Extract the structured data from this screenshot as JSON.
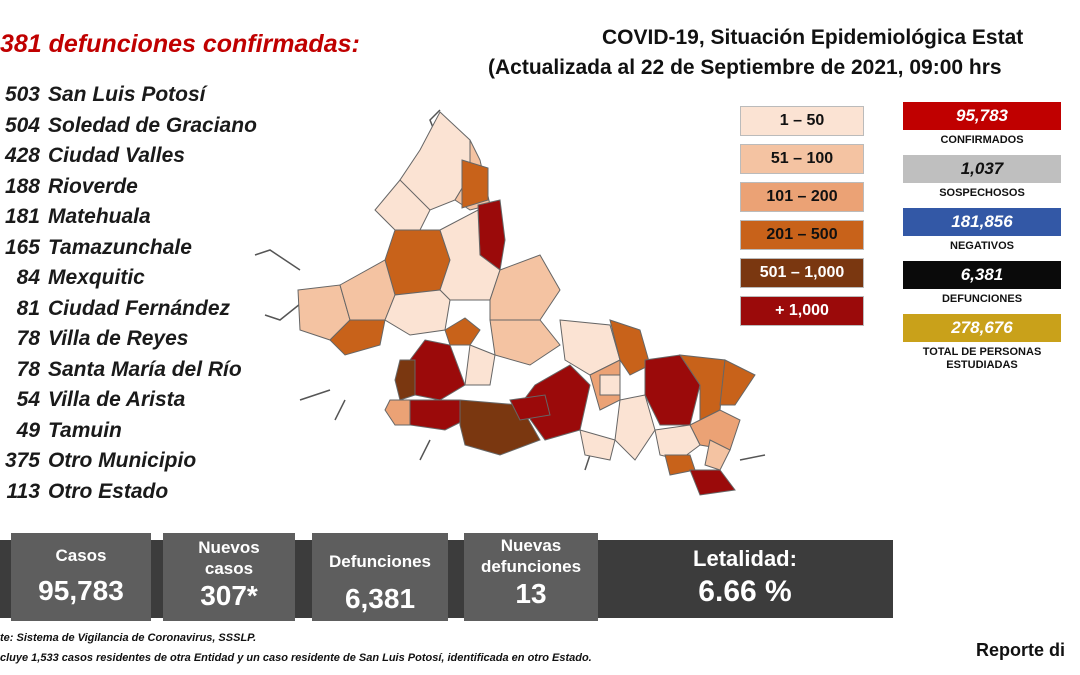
{
  "deaths_panel": {
    "title": "381 defunciones confirmadas:",
    "items": [
      {
        "count": "503",
        "name": "San Luis Potosí"
      },
      {
        "count": "504",
        "name": "Soledad de Graciano"
      },
      {
        "count": "428",
        "name": "Ciudad Valles"
      },
      {
        "count": "188",
        "name": "Rioverde"
      },
      {
        "count": "181",
        "name": "Matehuala"
      },
      {
        "count": "165",
        "name": "Tamazunchale"
      },
      {
        "count": "84",
        "name": "Mexquitic"
      },
      {
        "count": "81",
        "name": "Ciudad Fernández"
      },
      {
        "count": "78",
        "name": "Villa de Reyes"
      },
      {
        "count": "78",
        "name": "Santa María del Río"
      },
      {
        "count": "54",
        "name": "Villa de Arista"
      },
      {
        "count": "49",
        "name": "Tamuin"
      },
      {
        "count": "375",
        "name": "Otro Municipio"
      },
      {
        "count": "113",
        "name": "Otro Estado"
      }
    ]
  },
  "header": {
    "title": "COVID-19, Situación Epidemiológica Estat",
    "subtitle": "(Actualizada al 22 de Septiembre de 2021, 09:00 hrs"
  },
  "legend": [
    {
      "label": "1 – 50",
      "color": "#fbe3d3",
      "text_color": "#111111"
    },
    {
      "label": "51 – 100",
      "color": "#f4c3a2",
      "text_color": "#111111"
    },
    {
      "label": "101 – 200",
      "color": "#eba275",
      "text_color": "#111111"
    },
    {
      "label": "201 – 500",
      "color": "#c8621a",
      "text_color": "#111111"
    },
    {
      "label": "501 – 1,000",
      "color": "#7a3710",
      "text_color": "#ffffff"
    },
    {
      "label": "+ 1,000",
      "color": "#9b0a0a",
      "text_color": "#ffffff"
    }
  ],
  "stats": [
    {
      "value": "95,783",
      "label": "CONFIRMADOS",
      "color": "#c00000",
      "text_color": "#ffffff"
    },
    {
      "value": "1,037",
      "label": "SOSPECHOSOS",
      "color": "#bfbfbf",
      "text_color": "#111111"
    },
    {
      "value": "181,856",
      "label": "NEGATIVOS",
      "color": "#3358a6",
      "text_color": "#ffffff"
    },
    {
      "value": "6,381",
      "label": "DEFUNCIONES",
      "color": "#0a0a0a",
      "text_color": "#ffffff"
    },
    {
      "value": "278,676",
      "label": "TOTAL DE PERSONAS ESTUDIADAS",
      "color": "#c9a11a",
      "text_color": "#ffffff"
    }
  ],
  "summary": {
    "casos_label": "Casos",
    "casos_value": "95,783",
    "nuevos_casos_label": "Nuevos casos",
    "nuevos_casos_value": "307*",
    "defunciones_label": "Defunciones",
    "defunciones_value": "6,381",
    "nuevas_defunciones_label": "Nuevas defunciones",
    "nuevas_defunciones_value": "13",
    "letalidad_label": "Letalidad:",
    "letalidad_value": "6.66 %"
  },
  "footnotes": {
    "source": "te: Sistema de Vigilancia de Coronavirus, SSSLP.",
    "note": "cluye 1,533 casos residentes de otra Entidad y un caso residente de San Luis Potosí, identificada en otro Estado."
  },
  "report_label": "Reporte di"
}
